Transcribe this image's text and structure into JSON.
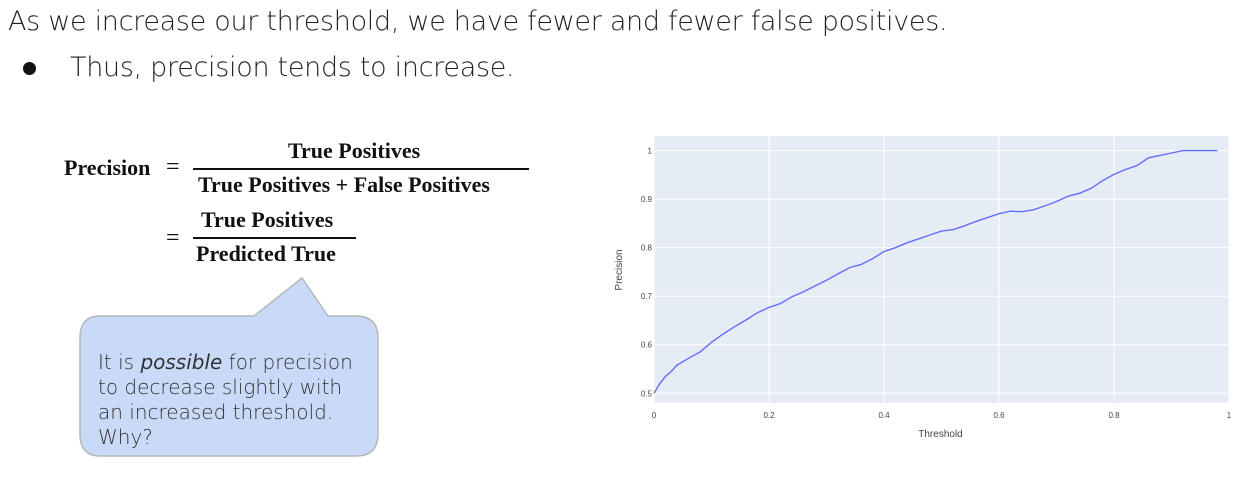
{
  "slide": {
    "heading": "As we increase our threshold, we have fewer and fewer false positives.",
    "bullet": "Thus, precision tends to increase."
  },
  "formula": {
    "lhs": "Precision",
    "equals": "=",
    "numerator1": "True Positives",
    "denominator1": "True Positives + False Positives",
    "numerator2": "True Positives",
    "denominator2": "Predicted True"
  },
  "callout": {
    "text_before": "It is ",
    "text_emphasis": "possible",
    "text_after": " for precision to decrease slightly with an increased threshold. Why?",
    "fill_color": "#c9daf8",
    "border_color": "#b7b7b7"
  },
  "chart_data": {
    "type": "line",
    "title": "",
    "xlabel": "Threshold",
    "ylabel": "Precision",
    "xlim": [
      0,
      1
    ],
    "ylim": [
      0.48,
      1.03
    ],
    "x_ticks": [
      0,
      0.2,
      0.4,
      0.6,
      0.8,
      1
    ],
    "x_tick_labels": [
      "0",
      "0.2",
      "0.4",
      "0.6",
      "0.8",
      "1"
    ],
    "y_ticks": [
      0.5,
      0.6,
      0.7,
      0.8,
      0.9,
      1
    ],
    "y_tick_labels": [
      "0.5",
      "0.6",
      "0.7",
      "0.8",
      "0.9",
      "1"
    ],
    "grid": true,
    "background_color": "#e5ecf6",
    "line_color": "#636efa",
    "series": [
      {
        "x": [
          0,
          0.01,
          0.02,
          0.03,
          0.04,
          0.06,
          0.08,
          0.1,
          0.12,
          0.14,
          0.16,
          0.18,
          0.2,
          0.22,
          0.24,
          0.26,
          0.28,
          0.3,
          0.32,
          0.34,
          0.36,
          0.38,
          0.4,
          0.42,
          0.44,
          0.46,
          0.48,
          0.5,
          0.52,
          0.54,
          0.56,
          0.58,
          0.6,
          0.62,
          0.64,
          0.66,
          0.68,
          0.7,
          0.72,
          0.74,
          0.76,
          0.78,
          0.8,
          0.82,
          0.84,
          0.86,
          0.88,
          0.9,
          0.92,
          0.94,
          0.96,
          0.98
        ],
        "y": [
          0.5,
          0.52,
          0.535,
          0.545,
          0.558,
          0.572,
          0.585,
          0.605,
          0.622,
          0.637,
          0.651,
          0.666,
          0.677,
          0.685,
          0.699,
          0.709,
          0.721,
          0.733,
          0.746,
          0.759,
          0.765,
          0.777,
          0.792,
          0.8,
          0.81,
          0.818,
          0.826,
          0.834,
          0.837,
          0.845,
          0.854,
          0.862,
          0.87,
          0.875,
          0.874,
          0.878,
          0.886,
          0.895,
          0.906,
          0.912,
          0.922,
          0.938,
          0.951,
          0.961,
          0.969,
          0.985,
          0.99,
          0.995,
          1.0,
          1.0,
          1.0,
          1.0
        ]
      }
    ]
  }
}
